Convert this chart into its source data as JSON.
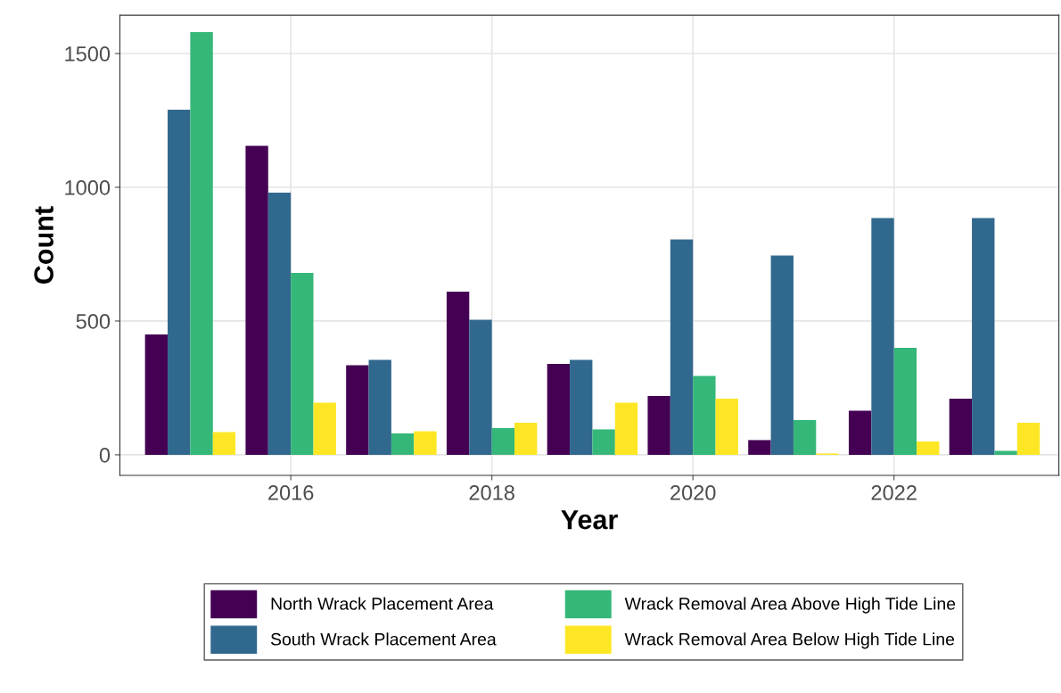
{
  "chart_data": {
    "type": "bar",
    "xlabel": "Year",
    "ylabel": "Count",
    "x": [
      2015,
      2016,
      2017,
      2018,
      2019,
      2020,
      2021,
      2022,
      2023
    ],
    "series": [
      {
        "name": "North Wrack Placement Area",
        "color": "#440154",
        "values": [
          450,
          1155,
          335,
          610,
          340,
          220,
          55,
          165,
          210
        ]
      },
      {
        "name": "South Wrack Placement Area",
        "color": "#31688e",
        "values": [
          1290,
          980,
          355,
          505,
          355,
          805,
          745,
          885,
          885
        ]
      },
      {
        "name": "Wrack Removal Area Above High Tide Line",
        "color": "#35b779",
        "values": [
          1580,
          680,
          80,
          100,
          95,
          295,
          130,
          400,
          15
        ]
      },
      {
        "name": "Wrack Removal Area Below High Tide Line",
        "color": "#fde725",
        "values": [
          85,
          195,
          88,
          120,
          195,
          210,
          5,
          50,
          120
        ]
      }
    ],
    "xlim": [
      2014.3,
      2023.64
    ],
    "xticks": [
      2016,
      2018,
      2020,
      2022
    ],
    "ylim": [
      -77,
      1643
    ],
    "yticks": [
      0,
      500,
      1000,
      1500
    ],
    "grid": true,
    "legend": "bottom"
  }
}
